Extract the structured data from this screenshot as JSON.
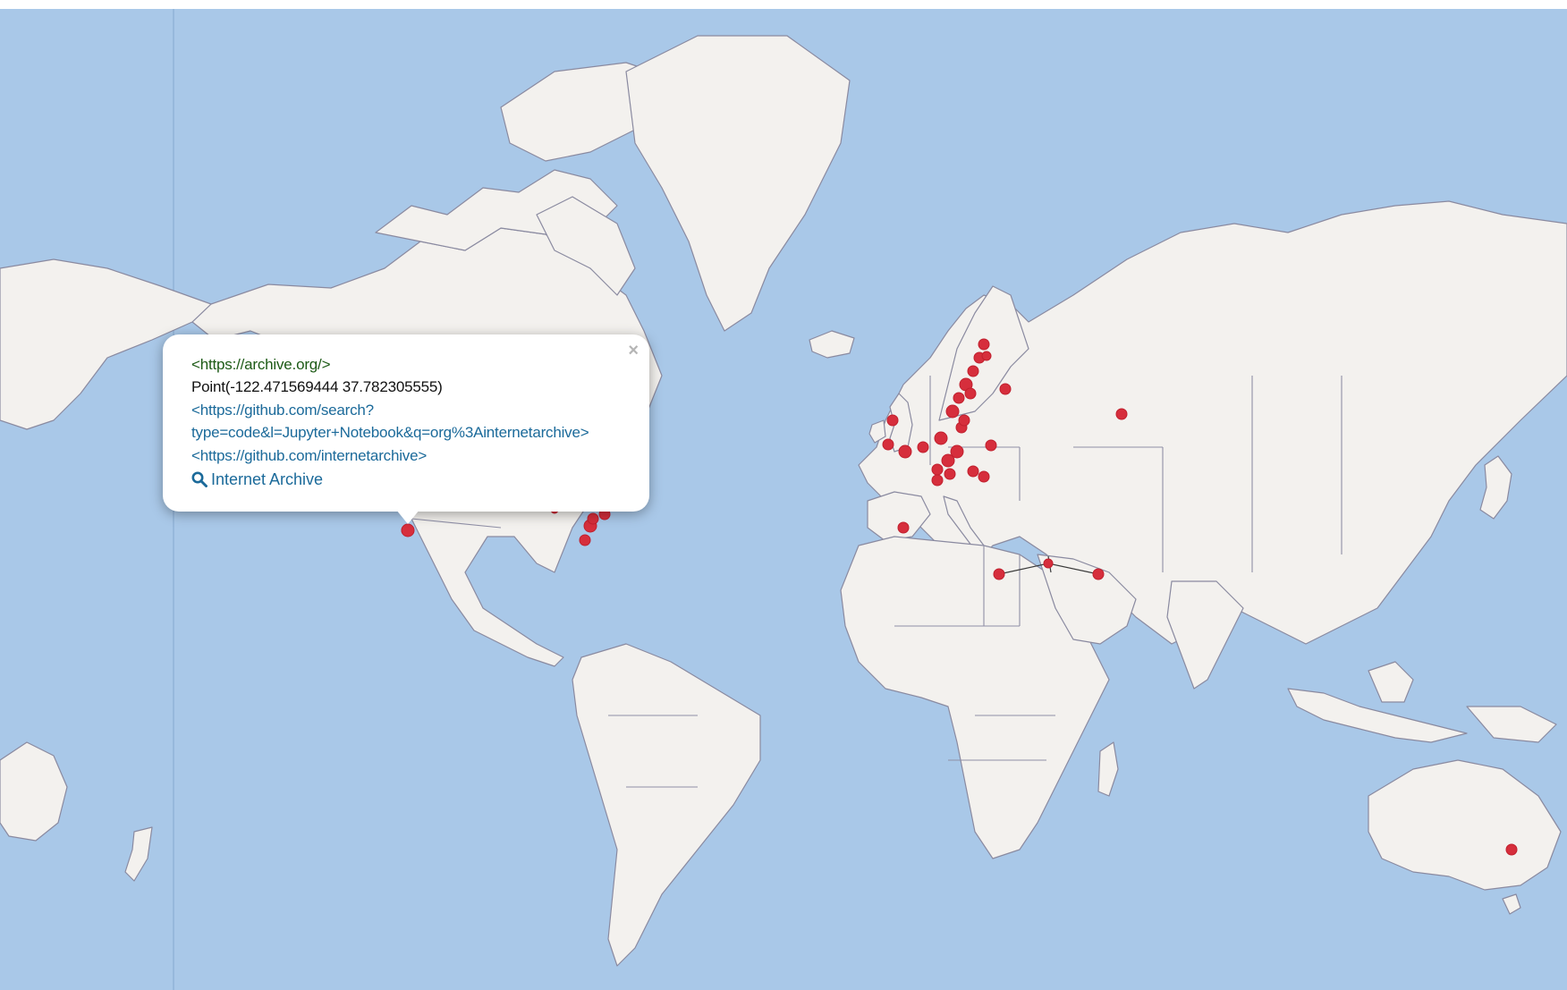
{
  "popup": {
    "subject_uri": "<https://archive.org/>",
    "geometry": "Point(-122.471569444 37.782305555)",
    "link_search_line1": "<https://github.com/search?",
    "link_search_line2": "type=code&l=Jupyter+Notebook&q=org%3Ainternetarchive>",
    "link_github": "<https://github.com/internetarchive>",
    "search_label": "Internet Archive",
    "close_label": "×"
  },
  "icons": {
    "close": "close-icon",
    "search": "search-icon",
    "marker": "map-marker"
  },
  "colors": {
    "ocean": "#a9c8e8",
    "land": "#f3f1ee",
    "marker": "#d62e3c",
    "subject_text": "#1d5a16",
    "link_text": "#1b6a9a"
  }
}
